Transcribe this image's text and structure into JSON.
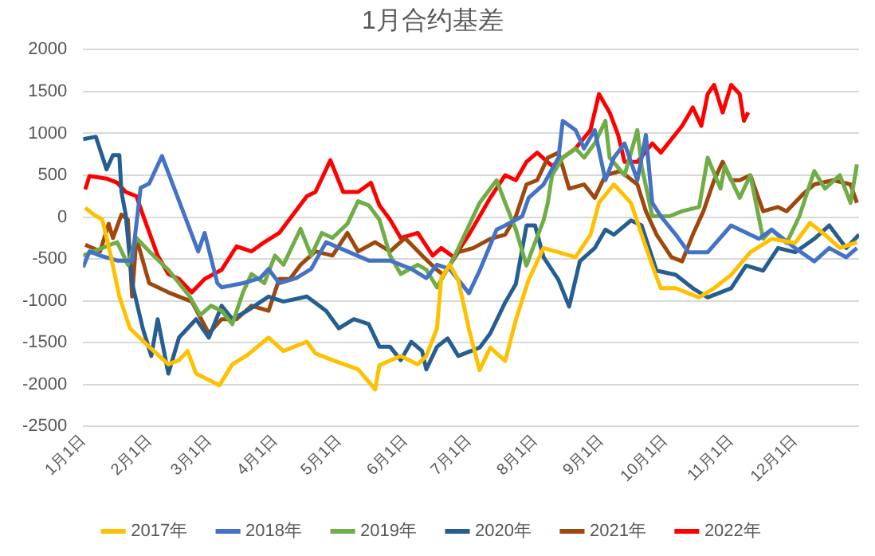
{
  "chart_data": {
    "type": "line",
    "title": "1月合约基差",
    "legend": "bottom",
    "grid": "y",
    "marker": "none",
    "line_style": "solid",
    "xlim": [
      "--01-01",
      "--12-31"
    ],
    "xticks": [
      {
        "value": "--01-01",
        "label": "1月1日"
      },
      {
        "value": "--02-01",
        "label": "2月1日"
      },
      {
        "value": "--03-01",
        "label": "3月1日"
      },
      {
        "value": "--04-01",
        "label": "4月1日"
      },
      {
        "value": "--05-01",
        "label": "5月1日"
      },
      {
        "value": "--06-01",
        "label": "6月1日"
      },
      {
        "value": "--07-01",
        "label": "7月1日"
      },
      {
        "value": "--08-01",
        "label": "8月1日"
      },
      {
        "value": "--09-01",
        "label": "9月1日"
      },
      {
        "value": "--10-01",
        "label": "10月1日"
      },
      {
        "value": "--11-01",
        "label": "11月1日"
      },
      {
        "value": "--12-01",
        "label": "12月1日"
      }
    ],
    "ylim": [
      -2500,
      2000
    ],
    "yticks": [
      -2500,
      -2000,
      -1500,
      -1000,
      -500,
      0,
      500,
      1000,
      1500,
      2000
    ],
    "series": [
      {
        "name": "2017年",
        "color": "#ffc000",
        "x": [
          "--01-02",
          "--01-06",
          "--01-10",
          "--01-14",
          "--01-18",
          "--01-23",
          "--02-01",
          "--02-10",
          "--02-15",
          "--02-19",
          "--02-23",
          "--03-06",
          "--03-12",
          "--03-19",
          "--03-29",
          "--04-05",
          "--04-16",
          "--04-20",
          "--04-28",
          "--05-10",
          "--05-18",
          "--05-20",
          "--05-30",
          "--06-07",
          "--06-11",
          "--06-16",
          "--06-18",
          "--06-22",
          "--06-26",
          "--07-01",
          "--07-06",
          "--07-11",
          "--07-18",
          "--07-23",
          "--07-29",
          "--08-05",
          "--08-12",
          "--08-20",
          "--08-27",
          "--08-31",
          "--09-07",
          "--09-15",
          "--09-20",
          "--09-25",
          "--09-29",
          "--10-06",
          "--10-17",
          "--10-24",
          "--11-01",
          "--11-10",
          "--11-20",
          "--12-01",
          "--12-08",
          "--12-15",
          "--12-22",
          "--12-30"
        ],
        "values": [
          110,
          30,
          -30,
          -460,
          -950,
          -1330,
          -1550,
          -1760,
          -1710,
          -1600,
          -1870,
          -2010,
          -1760,
          -1650,
          -1440,
          -1600,
          -1490,
          -1630,
          -1710,
          -1820,
          -2060,
          -1770,
          -1660,
          -1760,
          -1660,
          -1330,
          -730,
          -570,
          -750,
          -1340,
          -1830,
          -1560,
          -1720,
          -1230,
          -750,
          -370,
          -420,
          -480,
          -210,
          170,
          390,
          170,
          -210,
          -580,
          -850,
          -850,
          -960,
          -850,
          -690,
          -420,
          -260,
          -310,
          -70,
          -210,
          -370,
          -300
        ]
      },
      {
        "name": "2018年",
        "color": "#4472c4",
        "x": [
          "--01-01",
          "--01-04",
          "--01-09",
          "--01-17",
          "--01-24",
          "--01-28",
          "--02-01",
          "--02-07",
          "--02-24",
          "--02-27",
          "--03-05",
          "--03-07",
          "--03-17",
          "--03-25",
          "--03-29",
          "--04-03",
          "--04-11",
          "--04-18",
          "--04-25",
          "--05-05",
          "--05-15",
          "--05-25",
          "--06-04",
          "--06-11",
          "--06-16",
          "--06-22",
          "--07-01",
          "--07-06",
          "--07-14",
          "--07-18",
          "--07-26",
          "--07-29",
          "--08-05",
          "--08-12",
          "--08-14",
          "--08-20",
          "--08-24",
          "--08-29",
          "--09-03",
          "--09-07",
          "--09-12",
          "--09-18",
          "--09-22",
          "--09-25",
          "--09-29",
          "--10-06",
          "--10-12",
          "--10-21",
          "--11-01",
          "--11-05",
          "--11-14",
          "--11-20",
          "--12-01",
          "--12-10",
          "--12-17",
          "--12-25",
          "--12-30"
        ],
        "values": [
          -600,
          -410,
          -460,
          -520,
          -520,
          350,
          400,
          730,
          -410,
          -190,
          -790,
          -840,
          -790,
          -730,
          -620,
          -790,
          -730,
          -620,
          -300,
          -410,
          -520,
          -520,
          -620,
          -730,
          -570,
          -620,
          -910,
          -640,
          -150,
          -100,
          10,
          230,
          390,
          710,
          1150,
          1040,
          820,
          1040,
          440,
          710,
          880,
          440,
          980,
          170,
          10,
          -210,
          -420,
          -420,
          -100,
          -150,
          -260,
          -150,
          -370,
          -530,
          -370,
          -480,
          -370
        ]
      },
      {
        "name": "2019年",
        "color": "#70ad47",
        "x": [
          "--01-01",
          "--01-09",
          "--01-17",
          "--01-22",
          "--01-26",
          "--02-01",
          "--02-10",
          "--02-15",
          "--02-20",
          "--02-25",
          "--03-02",
          "--03-07",
          "--03-12",
          "--03-17",
          "--03-21",
          "--03-27",
          "--04-01",
          "--04-05",
          "--04-13",
          "--04-18",
          "--04-23",
          "--04-28",
          "--05-05",
          "--05-10",
          "--05-15",
          "--05-20",
          "--05-25",
          "--05-30",
          "--06-07",
          "--06-11",
          "--06-16",
          "--06-24",
          "--07-01",
          "--07-06",
          "--07-11",
          "--07-14",
          "--07-18",
          "--07-23",
          "--07-28",
          "--07-31",
          "--08-05",
          "--08-07",
          "--08-09",
          "--08-14",
          "--08-20",
          "--08-24",
          "--08-29",
          "--09-03",
          "--09-05",
          "--09-12",
          "--09-18",
          "--09-20",
          "--09-25",
          "--10-03",
          "--10-09",
          "--10-17",
          "--10-21",
          "--10-27",
          "--10-29",
          "--11-05",
          "--11-10",
          "--11-16",
          "--11-20",
          "--11-27",
          "--12-03",
          "--12-10",
          "--12-15",
          "--12-22",
          "--12-27",
          "--12-30"
        ],
        "values": [
          -460,
          -380,
          -300,
          -570,
          -250,
          -410,
          -630,
          -790,
          -950,
          -1170,
          -1060,
          -1120,
          -1280,
          -900,
          -680,
          -790,
          -460,
          -570,
          -140,
          -460,
          -190,
          -250,
          -80,
          190,
          140,
          -30,
          -460,
          -680,
          -570,
          -630,
          -840,
          -480,
          -100,
          170,
          340,
          440,
          170,
          -150,
          -580,
          -370,
          -40,
          170,
          500,
          710,
          820,
          710,
          880,
          1150,
          710,
          500,
          1040,
          610,
          10,
          10,
          70,
          120,
          710,
          340,
          610,
          230,
          500,
          -260,
          -150,
          -310,
          10,
          550,
          340,
          500,
          170,
          630
        ]
      },
      {
        "name": "2020年",
        "color": "#255e91",
        "x": [
          "--01-01",
          "--01-07",
          "--01-12",
          "--01-15",
          "--01-18",
          "--01-19",
          "--01-21",
          "--01-24",
          "--01-29",
          "--02-02",
          "--02-05",
          "--02-10",
          "--02-15",
          "--02-23",
          "--03-01",
          "--03-07",
          "--03-12",
          "--03-19",
          "--03-29",
          "--04-05",
          "--04-16",
          "--04-25",
          "--05-01",
          "--05-08",
          "--05-15",
          "--05-20",
          "--05-25",
          "--05-30",
          "--06-04",
          "--06-09",
          "--06-11",
          "--06-16",
          "--06-21",
          "--06-26",
          "--07-01",
          "--07-06",
          "--07-11",
          "--07-18",
          "--07-23",
          "--07-28",
          "--08-01",
          "--08-05",
          "--08-12",
          "--08-17",
          "--08-22",
          "--08-29",
          "--09-03",
          "--09-07",
          "--09-15",
          "--09-20",
          "--09-27",
          "--10-06",
          "--10-14",
          "--10-21",
          "--11-01",
          "--11-08",
          "--11-16",
          "--11-23",
          "--12-01",
          "--12-10",
          "--12-17",
          "--12-25",
          "--12-31"
        ],
        "values": [
          930,
          960,
          570,
          740,
          740,
          300,
          30,
          -790,
          -1330,
          -1660,
          -1220,
          -1870,
          -1440,
          -1220,
          -1440,
          -1060,
          -1220,
          -1120,
          -950,
          -1010,
          -950,
          -1120,
          -1330,
          -1220,
          -1280,
          -1550,
          -1550,
          -1710,
          -1490,
          -1600,
          -1820,
          -1550,
          -1450,
          -1660,
          -1610,
          -1560,
          -1390,
          -1020,
          -800,
          -100,
          -100,
          -480,
          -750,
          -1070,
          -530,
          -370,
          -150,
          -210,
          -40,
          -100,
          -640,
          -690,
          -850,
          -960,
          -850,
          -580,
          -640,
          -370,
          -420,
          -260,
          -100,
          -370,
          -210
        ]
      },
      {
        "name": "2021年",
        "color": "#9e480e",
        "x": [
          "--01-02",
          "--01-09",
          "--01-13",
          "--01-15",
          "--01-19",
          "--01-22",
          "--01-24",
          "--01-26",
          "--02-01",
          "--02-10",
          "--02-21",
          "--03-01",
          "--03-07",
          "--03-14",
          "--03-21",
          "--03-29",
          "--04-03",
          "--04-08",
          "--04-13",
          "--04-20",
          "--04-28",
          "--05-05",
          "--05-10",
          "--05-18",
          "--05-25",
          "--06-01",
          "--06-09",
          "--06-16",
          "--06-19",
          "--06-26",
          "--07-03",
          "--07-11",
          "--07-18",
          "--07-23",
          "--07-28",
          "--08-02",
          "--08-07",
          "--08-12",
          "--08-17",
          "--08-24",
          "--08-29",
          "--09-03",
          "--09-10",
          "--09-18",
          "--09-22",
          "--09-27",
          "--10-04",
          "--10-09",
          "--10-14",
          "--10-19",
          "--10-24",
          "--10-28",
          "--11-01",
          "--11-05",
          "--11-10",
          "--11-16",
          "--11-23",
          "--11-27",
          "--12-05",
          "--12-10",
          "--12-19",
          "--12-27",
          "--12-30"
        ],
        "values": [
          -330,
          -410,
          -80,
          -250,
          30,
          -30,
          -950,
          -250,
          -790,
          -900,
          -1010,
          -1390,
          -1220,
          -1220,
          -1060,
          -1120,
          -740,
          -740,
          -570,
          -410,
          -460,
          -190,
          -410,
          -300,
          -410,
          -250,
          -460,
          -630,
          -690,
          -420,
          -370,
          -260,
          -210,
          10,
          390,
          440,
          710,
          770,
          340,
          390,
          230,
          500,
          550,
          390,
          70,
          -210,
          -480,
          -530,
          -210,
          70,
          440,
          660,
          440,
          440,
          500,
          70,
          120,
          70,
          280,
          390,
          440,
          390,
          170
        ]
      },
      {
        "name": "2022年",
        "color": "#ff0000",
        "x": [
          "--01-02",
          "--01-04",
          "--01-12",
          "--01-17",
          "--01-21",
          "--01-26",
          "--01-29",
          "--02-05",
          "--02-10",
          "--02-15",
          "--02-21",
          "--02-27",
          "--03-07",
          "--03-14",
          "--03-21",
          "--03-27",
          "--04-03",
          "--04-11",
          "--04-16",
          "--04-20",
          "--04-27",
          "--05-03",
          "--05-10",
          "--05-16",
          "--05-20",
          "--05-25",
          "--05-30",
          "--06-07",
          "--06-14",
          "--06-18",
          "--06-24",
          "--07-01",
          "--07-06",
          "--07-11",
          "--07-18",
          "--07-23",
          "--07-28",
          "--08-02",
          "--08-09",
          "--08-14",
          "--08-20",
          "--08-27",
          "--08-31",
          "--09-05",
          "--09-09",
          "--09-12",
          "--09-18",
          "--09-25",
          "--09-29",
          "--10-09",
          "--10-14",
          "--10-18",
          "--10-21",
          "--10-24",
          "--10-28",
          "--11-01",
          "--11-05",
          "--11-07",
          "--11-09"
        ],
        "values": [
          330,
          490,
          460,
          410,
          300,
          250,
          30,
          -460,
          -680,
          -740,
          -900,
          -740,
          -630,
          -350,
          -410,
          -300,
          -190,
          80,
          250,
          300,
          680,
          300,
          300,
          410,
          140,
          -30,
          -250,
          -190,
          -460,
          -370,
          -480,
          -210,
          10,
          230,
          500,
          440,
          660,
          770,
          610,
          710,
          820,
          1040,
          1470,
          1250,
          980,
          660,
          660,
          880,
          770,
          1090,
          1310,
          1090,
          1470,
          1580,
          1250,
          1580,
          1470,
          1150,
          1250
        ]
      }
    ]
  }
}
